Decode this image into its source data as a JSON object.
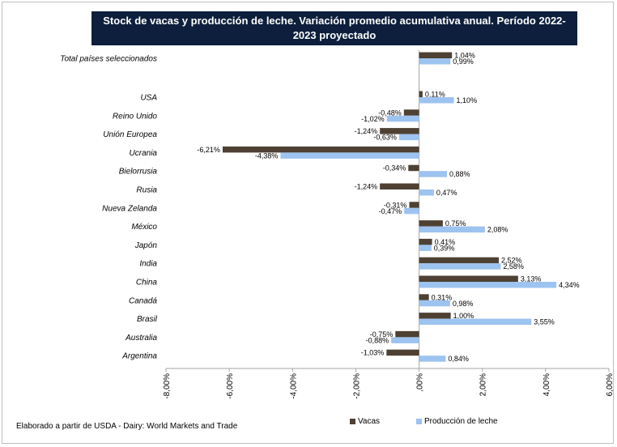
{
  "title": "Stock de vacas y producción de leche. Variación promedio acumulativa anual. Período 2022-2023 proyectado",
  "source_note": "Elaborado a partir de USDA - Dairy: World Markets and Trade",
  "colors": {
    "vacas": "#4e4133",
    "produccion": "#9dc3f0",
    "title_bg": "#0d1f3c"
  },
  "chart_data": {
    "type": "bar",
    "orientation": "horizontal",
    "categories": [
      "Total países seleccionados",
      "USA",
      "Reino Unido",
      "Unión Europea",
      "Ucrania",
      "Bielorrusia",
      "Rusia",
      "Nueva Zelanda",
      "México",
      "Japón",
      "India",
      "China",
      "Canadá",
      "Brasil",
      "Australia",
      "Argentina"
    ],
    "series": [
      {
        "name": "Vacas",
        "values": [
          1.04,
          0.11,
          -0.48,
          -1.24,
          -6.21,
          -0.34,
          -1.24,
          -0.31,
          0.75,
          0.41,
          2.52,
          3.13,
          0.31,
          1.0,
          -0.75,
          -1.03
        ],
        "labels": [
          "1,04%",
          "0,11%",
          "-0,48%",
          "-1,24%",
          "-6,21%",
          "-0,34%",
          "-1,24%",
          "-0,31%",
          "0,75%",
          "0,41%",
          "2,52%",
          "3,13%",
          "0,31%",
          "1,00%",
          "-0,75%",
          "-1,03%"
        ]
      },
      {
        "name": "Producción de leche",
        "values": [
          0.99,
          1.1,
          -1.02,
          -0.63,
          -4.38,
          0.88,
          0.47,
          -0.47,
          2.08,
          0.39,
          2.58,
          4.34,
          0.98,
          3.55,
          -0.88,
          0.84
        ],
        "labels": [
          "0,99%",
          "1,10%",
          "-1,02%",
          "-0,63%",
          "-4,38%",
          "0,88%",
          "0,47%",
          "-0,47%",
          "2,08%",
          "0,39%",
          "2,58%",
          "4,34%",
          "0,98%",
          "3,55%",
          "-0,88%",
          "0,84%"
        ]
      }
    ],
    "xlim": [
      -8,
      6
    ],
    "ticks": [
      -8,
      -6,
      -4,
      -2,
      0,
      2,
      4,
      6
    ],
    "tick_labels": [
      "-8,00%",
      "-6,00%",
      "-4,00%",
      "-2,00%",
      ",00%",
      "2,00%",
      "4,00%",
      "6,00%"
    ],
    "grid": false,
    "legend_position": "bottom"
  }
}
